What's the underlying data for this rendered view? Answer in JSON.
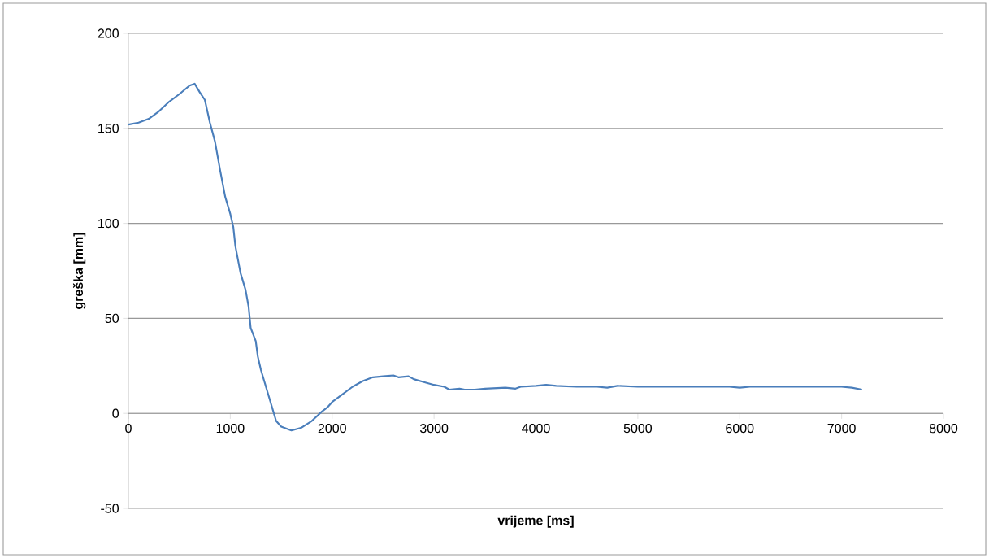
{
  "chart_data": {
    "type": "line",
    "xlabel": "vrijeme [ms]",
    "ylabel": "greška [mm]",
    "x": [
      0,
      100,
      200,
      300,
      400,
      500,
      600,
      650,
      700,
      750,
      800,
      850,
      900,
      950,
      1000,
      1030,
      1050,
      1100,
      1150,
      1180,
      1200,
      1250,
      1270,
      1300,
      1350,
      1400,
      1450,
      1500,
      1600,
      1700,
      1800,
      1900,
      1950,
      2000,
      2100,
      2200,
      2300,
      2400,
      2500,
      2600,
      2650,
      2750,
      2800,
      2900,
      3000,
      3100,
      3150,
      3250,
      3300,
      3400,
      3500,
      3700,
      3800,
      3850,
      4000,
      4100,
      4200,
      4400,
      4600,
      4700,
      4800,
      5000,
      5200,
      5400,
      5700,
      5900,
      6000,
      6100,
      6300,
      6500,
      6700,
      7000,
      7100,
      7200
    ],
    "series": [
      {
        "color": "#4a7ebb",
        "values": [
          152,
          153,
          155,
          159,
          164,
          168,
          172.5,
          173.5,
          169,
          165,
          153,
          143,
          128,
          114,
          105,
          98,
          88,
          74,
          65,
          56,
          45,
          38,
          30,
          23,
          14,
          5,
          -4,
          -7,
          -9,
          -7.5,
          -4,
          1,
          3,
          6,
          10,
          14,
          17,
          19,
          19.5,
          20,
          19,
          19.5,
          18,
          16.5,
          15,
          14,
          12.5,
          13,
          12.5,
          12.5,
          13,
          13.5,
          13,
          14,
          14.5,
          15,
          14.5,
          14,
          14,
          13.5,
          14.5,
          14,
          14,
          14,
          14,
          14,
          13.5,
          14,
          14,
          14,
          14,
          14,
          13.5,
          12.5
        ]
      }
    ],
    "xlim": [
      0,
      8000
    ],
    "xticks": [
      0,
      1000,
      2000,
      3000,
      4000,
      5000,
      6000,
      7000,
      8000
    ],
    "ylim": [
      -50,
      200
    ],
    "yticks": [
      -50,
      0,
      50,
      100,
      150,
      200
    ],
    "grid": "y",
    "marker": "none",
    "line_style": "solid"
  }
}
